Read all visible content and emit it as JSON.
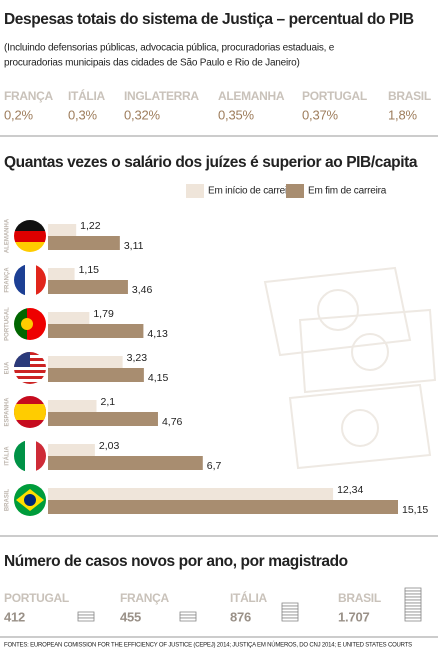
{
  "header": {
    "title": "Despesas totais do sistema de Justiça – percentual do PIB",
    "subtitle_lines": [
      "(Incluindo defensorias públicas, advocacia pública, procuradorias estaduais, e",
      "procuradorias municipais das cidades de São Paulo e Rio de Janeiro)"
    ],
    "items": [
      {
        "label": "FRANÇA",
        "value": "0,2%"
      },
      {
        "label": "ITÁLIA",
        "value": "0,3%"
      },
      {
        "label": "INGLATERRA",
        "value": "0,32%"
      },
      {
        "label": "ALEMANHA",
        "value": "0,35%"
      },
      {
        "label": "PORTUGAL",
        "value": "0,37%"
      },
      {
        "label": "BRASIL",
        "value": "1,8%"
      }
    ]
  },
  "chart_data": {
    "type": "bar",
    "orientation": "horizontal",
    "title": "Quantas vezes o salário dos juízes é superior ao PIB/capita",
    "categories": [
      "ALEMANHA",
      "FRANÇA",
      "PORTUGAL",
      "EUA",
      "ESPANHA",
      "ITÁLIA",
      "BRASIL"
    ],
    "series": [
      {
        "name": "Em início de carreira",
        "color": "#efe5da",
        "values": [
          1.22,
          1.15,
          1.79,
          3.23,
          2.1,
          2.03,
          12.34
        ],
        "value_labels": [
          "1,22",
          "1,15",
          "1,79",
          "3,23",
          "2,1",
          "2,03",
          "12,34"
        ]
      },
      {
        "name": "Em fim de carreira",
        "color": "#a88d70",
        "values": [
          3.11,
          3.46,
          4.13,
          4.15,
          4.76,
          6.7,
          15.15
        ],
        "value_labels": [
          "3,11",
          "3,46",
          "4,13",
          "4,15",
          "4,76",
          "6,7",
          "15,15"
        ]
      }
    ]
  },
  "cases": {
    "title": "Número de casos novos por ano, por magistrado",
    "items": [
      {
        "label": "PORTUGAL",
        "value": "412"
      },
      {
        "label": "FRANÇA",
        "value": "455"
      },
      {
        "label": "ITÁLIA",
        "value": "876"
      },
      {
        "label": "BRASIL",
        "value": "1.707"
      }
    ]
  },
  "source": "FONTES: EUROPEAN COMISSION FOR THE EFFICIENCY OF JUSTICE (CEPEJ) 2014; JUSTIÇA EM NÚMEROS, DO CNJ 2014; E UNITED STATES COURTS"
}
